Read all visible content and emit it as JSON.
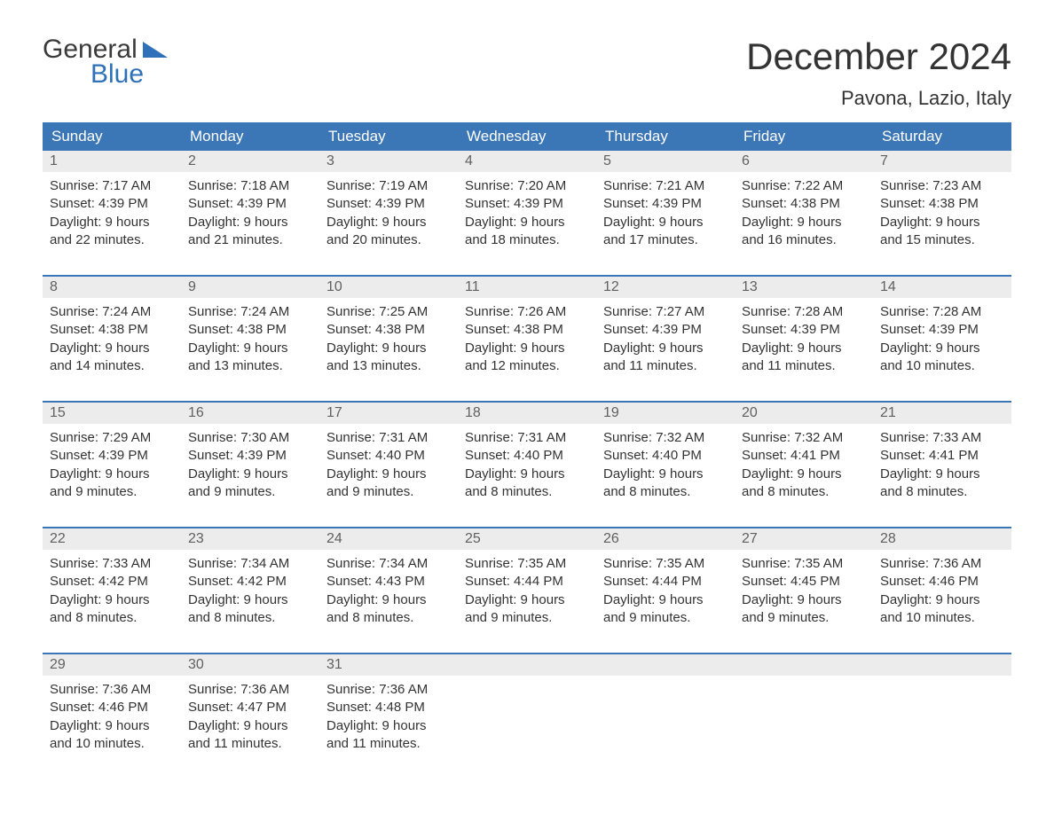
{
  "brand": {
    "word1": "General",
    "word2": "Blue"
  },
  "title": "December 2024",
  "location": "Pavona, Lazio, Italy",
  "colors": {
    "header_bg": "#3b76b6",
    "header_text": "#ffffff",
    "daynum_bg": "#ececec",
    "daynum_text": "#606060",
    "body_text": "#333333",
    "rule": "#3b76b6"
  },
  "days_of_week": [
    "Sunday",
    "Monday",
    "Tuesday",
    "Wednesday",
    "Thursday",
    "Friday",
    "Saturday"
  ],
  "weeks": [
    [
      {
        "n": "1",
        "sunrise": "Sunrise: 7:17 AM",
        "sunset": "Sunset: 4:39 PM",
        "dl1": "Daylight: 9 hours",
        "dl2": "and 22 minutes."
      },
      {
        "n": "2",
        "sunrise": "Sunrise: 7:18 AM",
        "sunset": "Sunset: 4:39 PM",
        "dl1": "Daylight: 9 hours",
        "dl2": "and 21 minutes."
      },
      {
        "n": "3",
        "sunrise": "Sunrise: 7:19 AM",
        "sunset": "Sunset: 4:39 PM",
        "dl1": "Daylight: 9 hours",
        "dl2": "and 20 minutes."
      },
      {
        "n": "4",
        "sunrise": "Sunrise: 7:20 AM",
        "sunset": "Sunset: 4:39 PM",
        "dl1": "Daylight: 9 hours",
        "dl2": "and 18 minutes."
      },
      {
        "n": "5",
        "sunrise": "Sunrise: 7:21 AM",
        "sunset": "Sunset: 4:39 PM",
        "dl1": "Daylight: 9 hours",
        "dl2": "and 17 minutes."
      },
      {
        "n": "6",
        "sunrise": "Sunrise: 7:22 AM",
        "sunset": "Sunset: 4:38 PM",
        "dl1": "Daylight: 9 hours",
        "dl2": "and 16 minutes."
      },
      {
        "n": "7",
        "sunrise": "Sunrise: 7:23 AM",
        "sunset": "Sunset: 4:38 PM",
        "dl1": "Daylight: 9 hours",
        "dl2": "and 15 minutes."
      }
    ],
    [
      {
        "n": "8",
        "sunrise": "Sunrise: 7:24 AM",
        "sunset": "Sunset: 4:38 PM",
        "dl1": "Daylight: 9 hours",
        "dl2": "and 14 minutes."
      },
      {
        "n": "9",
        "sunrise": "Sunrise: 7:24 AM",
        "sunset": "Sunset: 4:38 PM",
        "dl1": "Daylight: 9 hours",
        "dl2": "and 13 minutes."
      },
      {
        "n": "10",
        "sunrise": "Sunrise: 7:25 AM",
        "sunset": "Sunset: 4:38 PM",
        "dl1": "Daylight: 9 hours",
        "dl2": "and 13 minutes."
      },
      {
        "n": "11",
        "sunrise": "Sunrise: 7:26 AM",
        "sunset": "Sunset: 4:38 PM",
        "dl1": "Daylight: 9 hours",
        "dl2": "and 12 minutes."
      },
      {
        "n": "12",
        "sunrise": "Sunrise: 7:27 AM",
        "sunset": "Sunset: 4:39 PM",
        "dl1": "Daylight: 9 hours",
        "dl2": "and 11 minutes."
      },
      {
        "n": "13",
        "sunrise": "Sunrise: 7:28 AM",
        "sunset": "Sunset: 4:39 PM",
        "dl1": "Daylight: 9 hours",
        "dl2": "and 11 minutes."
      },
      {
        "n": "14",
        "sunrise": "Sunrise: 7:28 AM",
        "sunset": "Sunset: 4:39 PM",
        "dl1": "Daylight: 9 hours",
        "dl2": "and 10 minutes."
      }
    ],
    [
      {
        "n": "15",
        "sunrise": "Sunrise: 7:29 AM",
        "sunset": "Sunset: 4:39 PM",
        "dl1": "Daylight: 9 hours",
        "dl2": "and 9 minutes."
      },
      {
        "n": "16",
        "sunrise": "Sunrise: 7:30 AM",
        "sunset": "Sunset: 4:39 PM",
        "dl1": "Daylight: 9 hours",
        "dl2": "and 9 minutes."
      },
      {
        "n": "17",
        "sunrise": "Sunrise: 7:31 AM",
        "sunset": "Sunset: 4:40 PM",
        "dl1": "Daylight: 9 hours",
        "dl2": "and 9 minutes."
      },
      {
        "n": "18",
        "sunrise": "Sunrise: 7:31 AM",
        "sunset": "Sunset: 4:40 PM",
        "dl1": "Daylight: 9 hours",
        "dl2": "and 8 minutes."
      },
      {
        "n": "19",
        "sunrise": "Sunrise: 7:32 AM",
        "sunset": "Sunset: 4:40 PM",
        "dl1": "Daylight: 9 hours",
        "dl2": "and 8 minutes."
      },
      {
        "n": "20",
        "sunrise": "Sunrise: 7:32 AM",
        "sunset": "Sunset: 4:41 PM",
        "dl1": "Daylight: 9 hours",
        "dl2": "and 8 minutes."
      },
      {
        "n": "21",
        "sunrise": "Sunrise: 7:33 AM",
        "sunset": "Sunset: 4:41 PM",
        "dl1": "Daylight: 9 hours",
        "dl2": "and 8 minutes."
      }
    ],
    [
      {
        "n": "22",
        "sunrise": "Sunrise: 7:33 AM",
        "sunset": "Sunset: 4:42 PM",
        "dl1": "Daylight: 9 hours",
        "dl2": "and 8 minutes."
      },
      {
        "n": "23",
        "sunrise": "Sunrise: 7:34 AM",
        "sunset": "Sunset: 4:42 PM",
        "dl1": "Daylight: 9 hours",
        "dl2": "and 8 minutes."
      },
      {
        "n": "24",
        "sunrise": "Sunrise: 7:34 AM",
        "sunset": "Sunset: 4:43 PM",
        "dl1": "Daylight: 9 hours",
        "dl2": "and 8 minutes."
      },
      {
        "n": "25",
        "sunrise": "Sunrise: 7:35 AM",
        "sunset": "Sunset: 4:44 PM",
        "dl1": "Daylight: 9 hours",
        "dl2": "and 9 minutes."
      },
      {
        "n": "26",
        "sunrise": "Sunrise: 7:35 AM",
        "sunset": "Sunset: 4:44 PM",
        "dl1": "Daylight: 9 hours",
        "dl2": "and 9 minutes."
      },
      {
        "n": "27",
        "sunrise": "Sunrise: 7:35 AM",
        "sunset": "Sunset: 4:45 PM",
        "dl1": "Daylight: 9 hours",
        "dl2": "and 9 minutes."
      },
      {
        "n": "28",
        "sunrise": "Sunrise: 7:36 AM",
        "sunset": "Sunset: 4:46 PM",
        "dl1": "Daylight: 9 hours",
        "dl2": "and 10 minutes."
      }
    ],
    [
      {
        "n": "29",
        "sunrise": "Sunrise: 7:36 AM",
        "sunset": "Sunset: 4:46 PM",
        "dl1": "Daylight: 9 hours",
        "dl2": "and 10 minutes."
      },
      {
        "n": "30",
        "sunrise": "Sunrise: 7:36 AM",
        "sunset": "Sunset: 4:47 PM",
        "dl1": "Daylight: 9 hours",
        "dl2": "and 11 minutes."
      },
      {
        "n": "31",
        "sunrise": "Sunrise: 7:36 AM",
        "sunset": "Sunset: 4:48 PM",
        "dl1": "Daylight: 9 hours",
        "dl2": "and 11 minutes."
      },
      {
        "empty": true
      },
      {
        "empty": true
      },
      {
        "empty": true
      },
      {
        "empty": true
      }
    ]
  ]
}
